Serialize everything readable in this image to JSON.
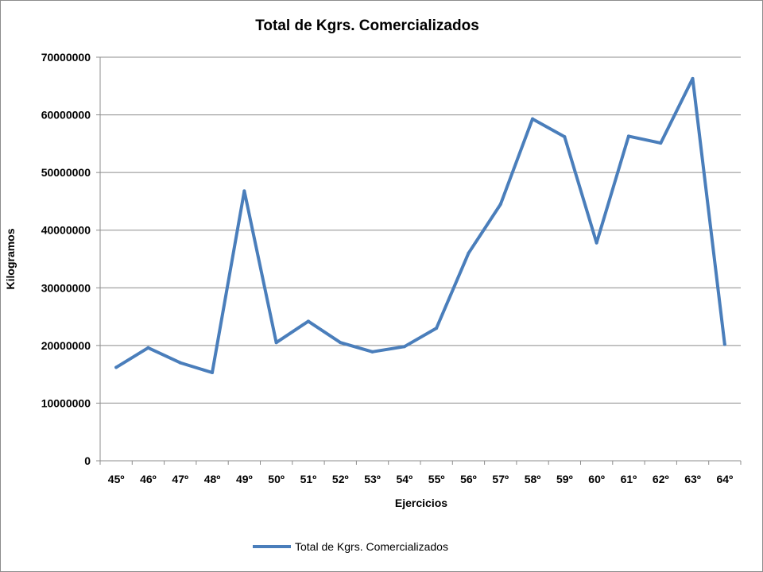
{
  "chart_data": {
    "type": "line",
    "title": "Total de Kgrs. Comercializados",
    "xlabel": "Ejercicios",
    "ylabel": "Kilogramos",
    "categories": [
      "45º",
      "46º",
      "47º",
      "48º",
      "49º",
      "50º",
      "51º",
      "52º",
      "53º",
      "54º",
      "55º",
      "56º",
      "57º",
      "58º",
      "59º",
      "60º",
      "61º",
      "62º",
      "63º",
      "64º"
    ],
    "series": [
      {
        "name": "Total de Kgrs. Comercializados",
        "color": "#4a7ebb",
        "values": [
          16200000,
          19600000,
          17000000,
          15300000,
          46800000,
          20500000,
          24200000,
          20500000,
          18900000,
          19800000,
          23000000,
          36000000,
          44500000,
          59300000,
          56200000,
          37800000,
          56300000,
          55100000,
          66300000,
          20200000
        ]
      }
    ],
    "ylim": [
      0,
      70000000
    ],
    "yticks": [
      "0",
      "10000000",
      "20000000",
      "30000000",
      "40000000",
      "50000000",
      "60000000",
      "70000000"
    ],
    "grid": true,
    "legend": "bottom"
  }
}
